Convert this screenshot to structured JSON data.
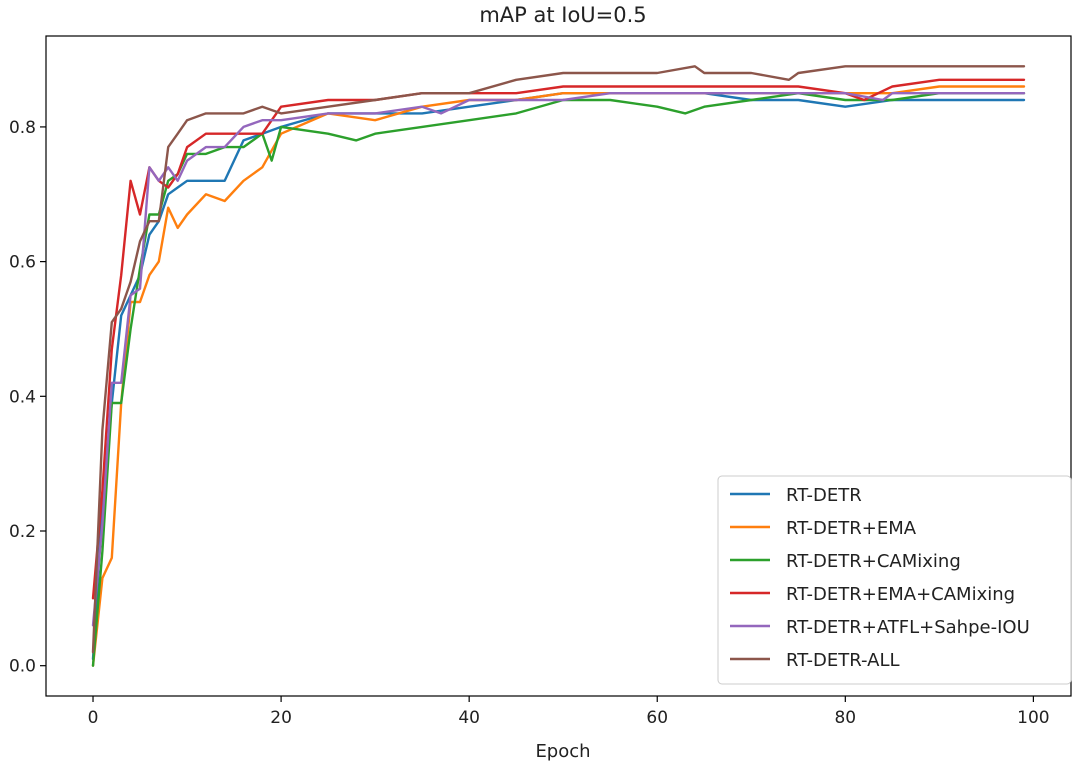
{
  "chart_data": {
    "type": "line",
    "title": "mAP at IoU=0.5",
    "xlabel": "Epoch",
    "ylabel": "",
    "xlim": [
      -5,
      104
    ],
    "ylim": [
      -0.045,
      0.935
    ],
    "xticks": [
      0,
      20,
      40,
      60,
      80,
      100
    ],
    "yticks": [
      0.0,
      0.2,
      0.4,
      0.6,
      0.8
    ],
    "xtick_labels": [
      "0",
      "20",
      "40",
      "60",
      "80",
      "100"
    ],
    "ytick_labels": [
      "0.0",
      "0.2",
      "0.4",
      "0.6",
      "0.8"
    ],
    "grid": false,
    "legend_position": "lower-right",
    "series": [
      {
        "name": "RT-DETR",
        "color": "#1f77b4",
        "x": [
          0,
          1,
          2,
          3,
          4,
          5,
          6,
          7,
          8,
          9,
          10,
          12,
          14,
          16,
          18,
          20,
          25,
          30,
          35,
          40,
          45,
          50,
          55,
          60,
          65,
          70,
          75,
          80,
          85,
          90,
          95,
          99
        ],
        "y": [
          0.01,
          0.24,
          0.39,
          0.52,
          0.55,
          0.58,
          0.64,
          0.66,
          0.7,
          0.71,
          0.72,
          0.72,
          0.72,
          0.78,
          0.79,
          0.8,
          0.82,
          0.82,
          0.82,
          0.83,
          0.84,
          0.85,
          0.85,
          0.85,
          0.85,
          0.84,
          0.84,
          0.83,
          0.84,
          0.84,
          0.84,
          0.84
        ]
      },
      {
        "name": "RT-DETR+EMA",
        "color": "#ff7f0e",
        "x": [
          0,
          1,
          2,
          3,
          4,
          5,
          6,
          7,
          8,
          9,
          10,
          12,
          14,
          16,
          18,
          20,
          25,
          30,
          35,
          40,
          45,
          50,
          55,
          60,
          65,
          70,
          75,
          80,
          85,
          90,
          95,
          99
        ],
        "y": [
          0.0,
          0.13,
          0.16,
          0.39,
          0.54,
          0.54,
          0.58,
          0.6,
          0.68,
          0.65,
          0.67,
          0.7,
          0.69,
          0.72,
          0.74,
          0.79,
          0.82,
          0.81,
          0.83,
          0.84,
          0.84,
          0.85,
          0.85,
          0.85,
          0.85,
          0.85,
          0.85,
          0.85,
          0.85,
          0.86,
          0.86,
          0.86
        ]
      },
      {
        "name": "RT-DETR+CAMixing",
        "color": "#2ca02c",
        "x": [
          0,
          1,
          2,
          3,
          4,
          5,
          6,
          7,
          8,
          9,
          10,
          12,
          14,
          16,
          18,
          19,
          20,
          25,
          28,
          30,
          35,
          40,
          45,
          50,
          55,
          60,
          63,
          65,
          70,
          75,
          80,
          85,
          90,
          95,
          99
        ],
        "y": [
          0.0,
          0.17,
          0.39,
          0.39,
          0.5,
          0.59,
          0.67,
          0.67,
          0.72,
          0.73,
          0.76,
          0.76,
          0.77,
          0.77,
          0.79,
          0.75,
          0.8,
          0.79,
          0.78,
          0.79,
          0.8,
          0.81,
          0.82,
          0.84,
          0.84,
          0.83,
          0.82,
          0.83,
          0.84,
          0.85,
          0.84,
          0.84,
          0.85,
          0.85,
          0.85
        ]
      },
      {
        "name": "RT-DETR+EMA+CAMixing",
        "color": "#d62728",
        "x": [
          0,
          1,
          2,
          3,
          4,
          5,
          6,
          7,
          8,
          9,
          10,
          12,
          14,
          16,
          18,
          20,
          25,
          30,
          35,
          40,
          45,
          50,
          55,
          60,
          65,
          70,
          75,
          80,
          82,
          85,
          90,
          95,
          99
        ],
        "y": [
          0.1,
          0.26,
          0.47,
          0.58,
          0.72,
          0.67,
          0.74,
          0.72,
          0.71,
          0.73,
          0.77,
          0.79,
          0.79,
          0.79,
          0.79,
          0.83,
          0.84,
          0.84,
          0.85,
          0.85,
          0.85,
          0.86,
          0.86,
          0.86,
          0.86,
          0.86,
          0.86,
          0.85,
          0.84,
          0.86,
          0.87,
          0.87,
          0.87
        ]
      },
      {
        "name": "RT-DETR+ATFL+Sahpe-IOU",
        "color": "#9467bd",
        "x": [
          0,
          1,
          2,
          3,
          4,
          5,
          6,
          7,
          8,
          9,
          10,
          12,
          14,
          16,
          18,
          20,
          25,
          30,
          35,
          37,
          40,
          45,
          50,
          55,
          60,
          65,
          70,
          75,
          80,
          84,
          85,
          90,
          95,
          99
        ],
        "y": [
          0.06,
          0.21,
          0.42,
          0.42,
          0.55,
          0.56,
          0.74,
          0.72,
          0.74,
          0.72,
          0.75,
          0.77,
          0.77,
          0.8,
          0.81,
          0.81,
          0.82,
          0.82,
          0.83,
          0.82,
          0.84,
          0.84,
          0.84,
          0.85,
          0.85,
          0.85,
          0.85,
          0.85,
          0.85,
          0.84,
          0.85,
          0.85,
          0.85,
          0.85
        ]
      },
      {
        "name": "RT-DETR-ALL",
        "color": "#8c564b",
        "x": [
          0,
          1,
          2,
          3,
          4,
          5,
          6,
          7,
          8,
          9,
          10,
          12,
          14,
          16,
          18,
          20,
          25,
          30,
          35,
          40,
          45,
          50,
          55,
          60,
          64,
          65,
          70,
          74,
          75,
          80,
          85,
          90,
          95,
          99
        ],
        "y": [
          0.02,
          0.35,
          0.51,
          0.53,
          0.57,
          0.63,
          0.66,
          0.66,
          0.77,
          0.79,
          0.81,
          0.82,
          0.82,
          0.82,
          0.83,
          0.82,
          0.83,
          0.84,
          0.85,
          0.85,
          0.87,
          0.88,
          0.88,
          0.88,
          0.89,
          0.88,
          0.88,
          0.87,
          0.88,
          0.89,
          0.89,
          0.89,
          0.89,
          0.89
        ]
      }
    ]
  }
}
